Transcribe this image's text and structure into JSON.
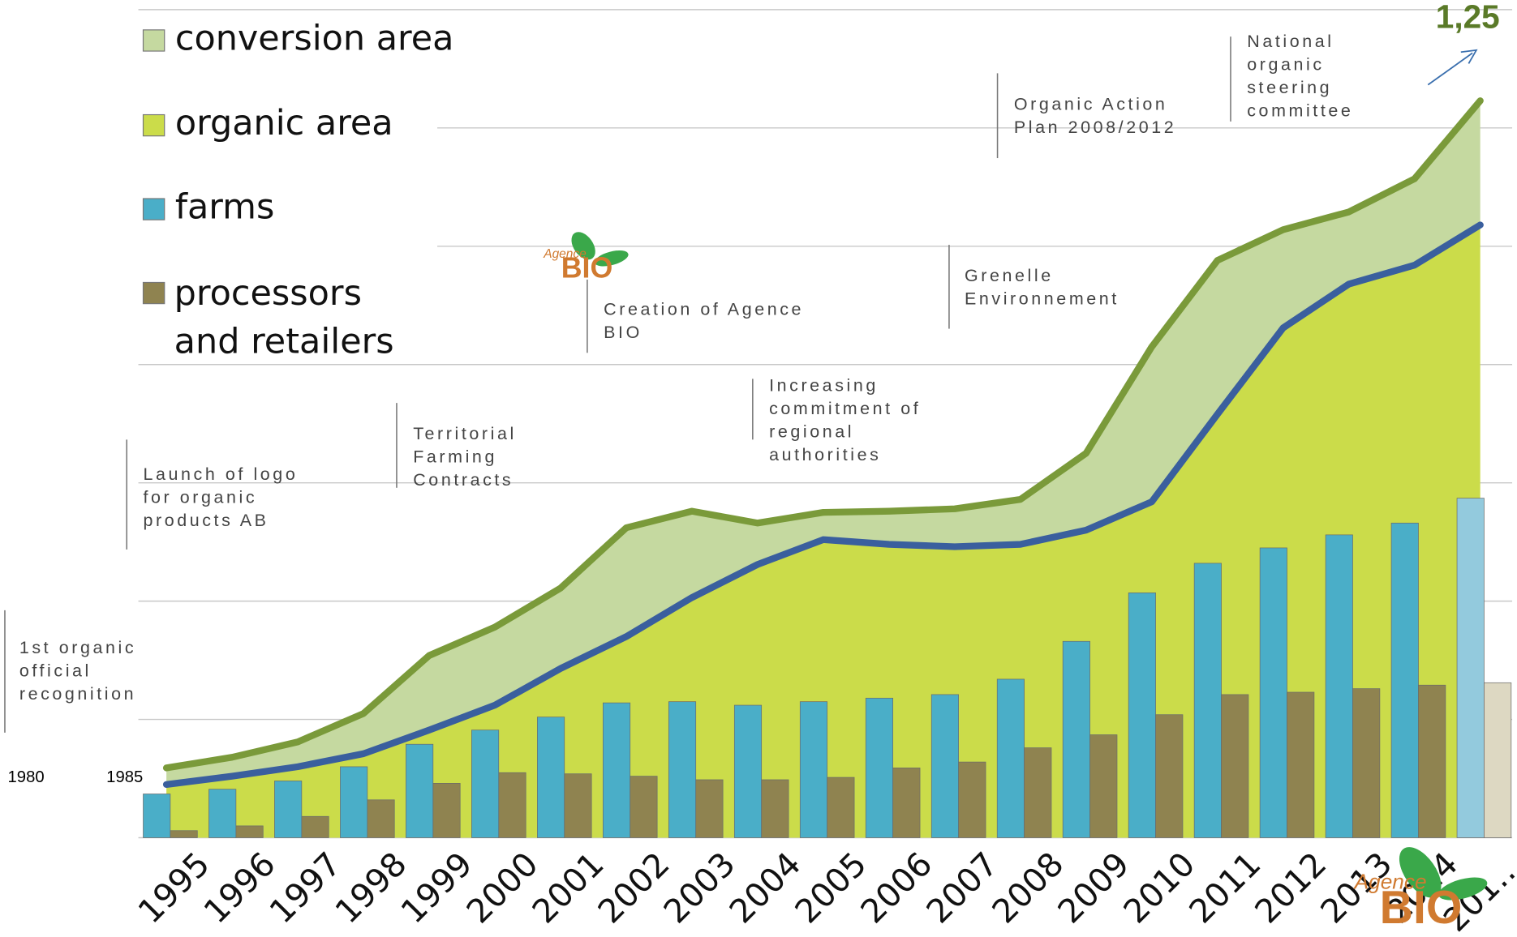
{
  "chart_data": {
    "type": "bar-area",
    "categories": [
      "1995",
      "1996",
      "1997",
      "1998",
      "1999",
      "2000",
      "2001",
      "2002",
      "2003",
      "2004",
      "2005",
      "2006",
      "2007",
      "2008",
      "2009",
      "2010",
      "2011",
      "2012",
      "2013",
      "2014",
      "201…"
    ],
    "extra_year_labels": [
      "1980",
      "1985"
    ],
    "ylim": [
      0,
      7
    ],
    "grid": true,
    "series": [
      {
        "name": "conversion area",
        "kind": "area",
        "color": "#c5d9a0",
        "line_color": "#7a9a3a",
        "values": [
          0.14,
          0.16,
          0.21,
          0.34,
          0.63,
          0.66,
          0.68,
          0.92,
          0.73,
          0.35,
          0.23,
          0.28,
          0.32,
          0.38,
          0.65,
          1.31,
          1.3,
          0.83,
          0.61,
          0.73,
          1.05
        ]
      },
      {
        "name": "organic area",
        "kind": "area",
        "color": "#cbdc4a",
        "line_color": "#3a5f9e",
        "values": [
          0.45,
          0.52,
          0.6,
          0.71,
          0.91,
          1.12,
          1.43,
          1.7,
          2.03,
          2.31,
          2.52,
          2.48,
          2.46,
          2.48,
          2.6,
          2.84,
          3.58,
          4.31,
          4.68,
          4.84,
          5.18
        ]
      },
      {
        "name": "farms",
        "kind": "bar",
        "color": "#4aaec8",
        "projected_color": "#93cadd",
        "values": [
          0.37,
          0.41,
          0.48,
          0.6,
          0.79,
          0.91,
          1.02,
          1.14,
          1.15,
          1.12,
          1.15,
          1.18,
          1.21,
          1.34,
          1.66,
          2.07,
          2.32,
          2.45,
          2.56,
          2.66,
          2.87
        ]
      },
      {
        "name": "processors and retailers",
        "kind": "bar",
        "color": "#8f8350",
        "projected_color": "#ddd8c2",
        "values": [
          0.06,
          0.1,
          0.18,
          0.32,
          0.46,
          0.55,
          0.54,
          0.52,
          0.49,
          0.49,
          0.51,
          0.59,
          0.64,
          0.76,
          0.87,
          1.04,
          1.21,
          1.23,
          1.26,
          1.29,
          1.31
        ]
      }
    ],
    "annotations": [
      {
        "lines": [
          "1st organic",
          "official",
          "recognition"
        ]
      },
      {
        "lines": [
          "Launch of logo",
          "for organic",
          "products AB"
        ]
      },
      {
        "lines": [
          "Territorial",
          "Farming",
          "Contracts"
        ]
      },
      {
        "lines": [
          "Creation of Agence",
          "BIO"
        ]
      },
      {
        "lines": [
          "Increasing",
          "commitment of",
          "regional",
          "authorities"
        ]
      },
      {
        "lines": [
          "Grenelle",
          "Environnement"
        ]
      },
      {
        "lines": [
          "Organic Action",
          "Plan 2008/2012"
        ]
      },
      {
        "lines": [
          "National",
          "organic",
          "steering",
          "committee"
        ]
      }
    ],
    "top_value_label": "1,25",
    "logo_text": [
      "Agence",
      "BIO"
    ]
  }
}
